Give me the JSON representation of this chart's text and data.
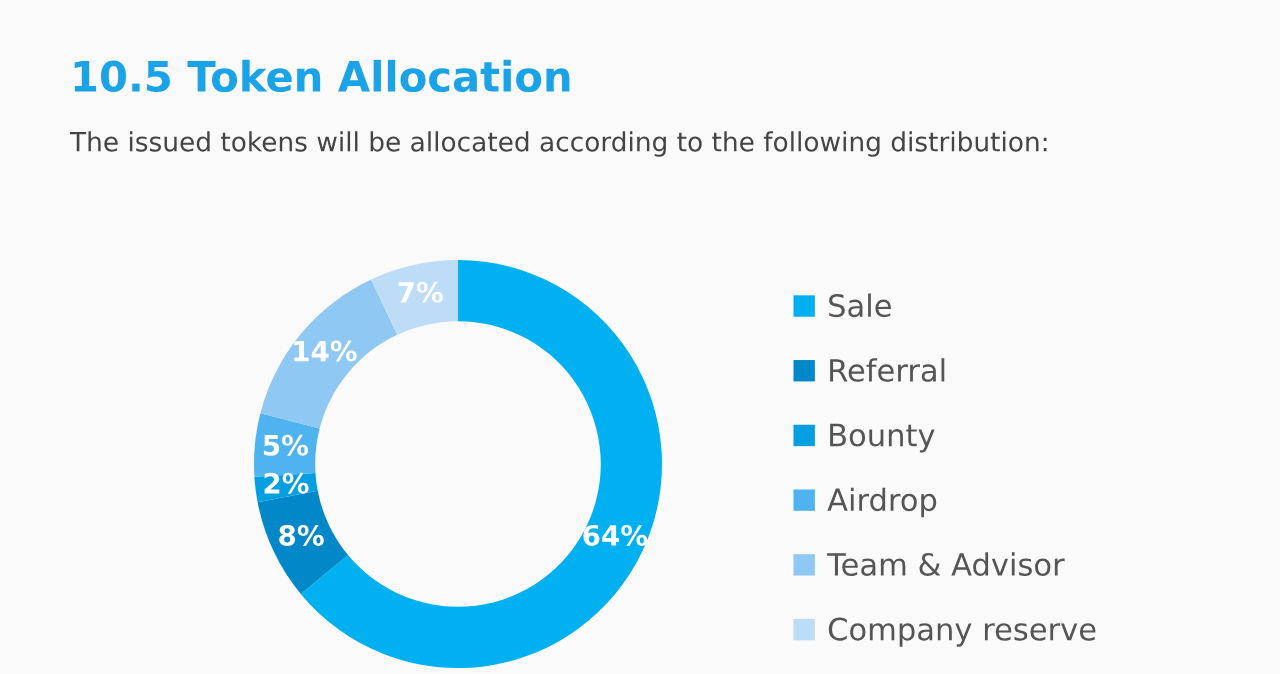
{
  "chart_data": {
    "type": "donut",
    "title": "10.5 Token Allocation",
    "subtitle": "The issued tokens will be allocated according to the following distribution:",
    "categories": [
      "Sale",
      "Referral",
      "Bounty",
      "Airdrop",
      "Team & Advisor",
      "Company reserve"
    ],
    "values": [
      64,
      8,
      2,
      5,
      14,
      7
    ],
    "value_labels": [
      "64%",
      "8%",
      "2%",
      "5%",
      "14%",
      "7%"
    ],
    "colors": [
      "#00b0f0",
      "#0288c8",
      "#039fe0",
      "#4fb3f0",
      "#90c8f4",
      "#bcdcf8"
    ],
    "legend": "right"
  }
}
